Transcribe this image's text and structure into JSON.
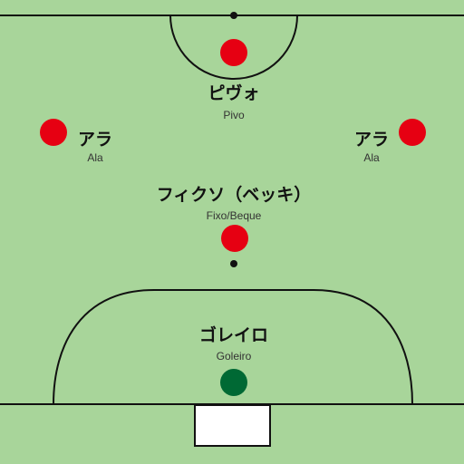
{
  "colors": {
    "pitch": "#a8d59a",
    "lines": "#111111",
    "attacker": "#e60012",
    "goalkeeper": "#006934"
  },
  "players": [
    {
      "role": "pivo",
      "name_jp": "ピヴォ",
      "name_pt": "Pivo",
      "team_color": "attacker"
    },
    {
      "role": "ala-left",
      "name_jp": "アラ",
      "name_pt": "Ala",
      "team_color": "attacker"
    },
    {
      "role": "ala-right",
      "name_jp": "アラ",
      "name_pt": "Ala",
      "team_color": "attacker"
    },
    {
      "role": "fixo",
      "name_jp": "フィクソ（ベッキ）",
      "name_pt": "Fixo/Beque",
      "team_color": "attacker"
    },
    {
      "role": "goleiro",
      "name_jp": "ゴレイロ",
      "name_pt": "Goleiro",
      "team_color": "goalkeeper"
    }
  ]
}
